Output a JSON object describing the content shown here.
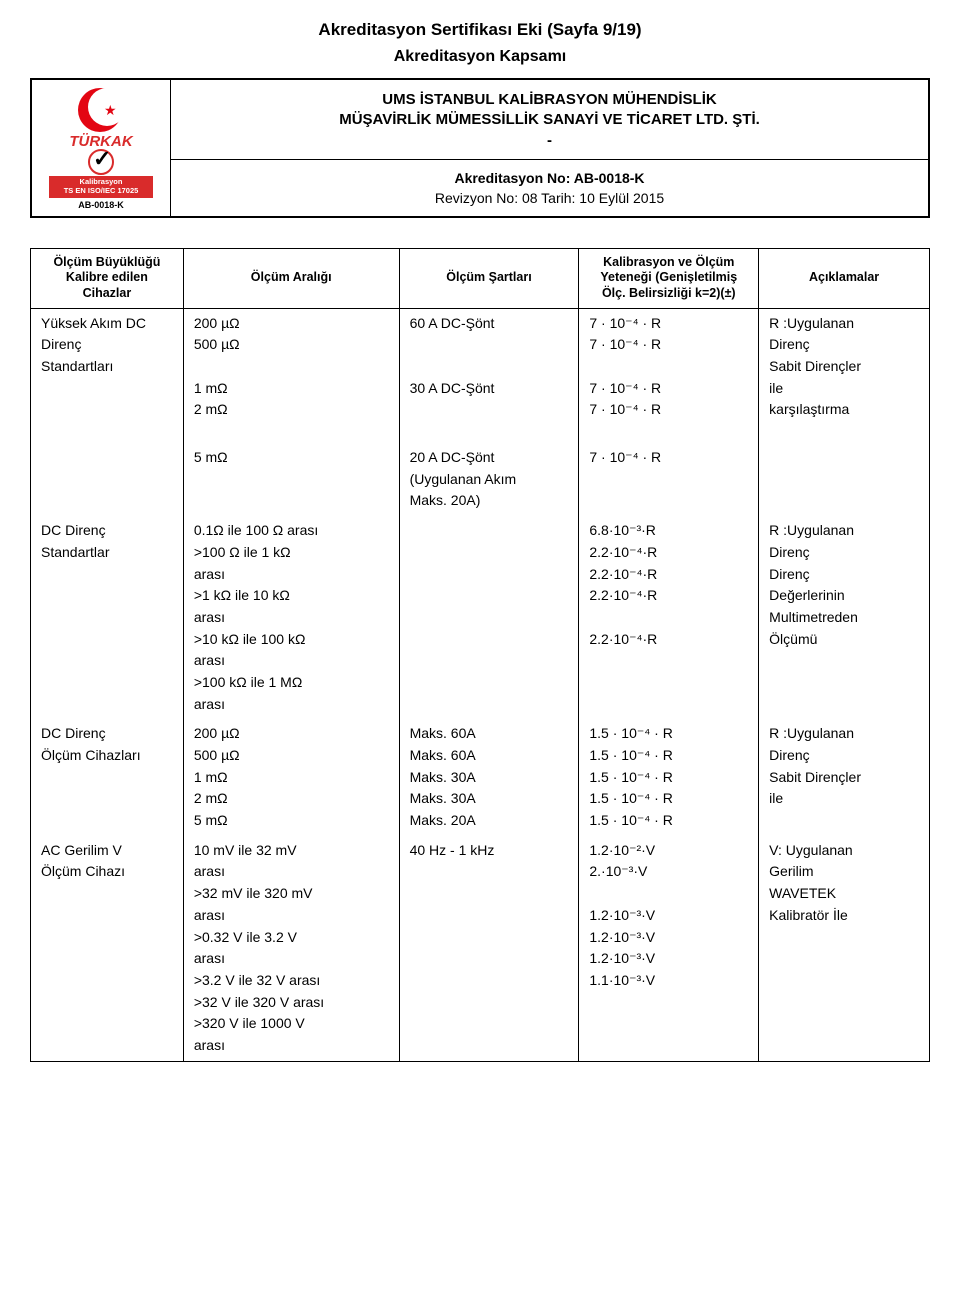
{
  "title": "Akreditasyon Sertifikası Eki (Sayfa 9/19)",
  "subtitle": "Akreditasyon Kapsamı",
  "logo": {
    "brand": "TÜRKAK",
    "line1": "Kalibrasyon",
    "line2": "TS EN ISO/IEC 17025",
    "code": "AB-0018-K"
  },
  "org": {
    "name_l1": "UMS İSTANBUL KALİBRASYON MÜHENDİSLİK",
    "name_l2": "MÜŞAVİRLİK MÜMESSİLLİK SANAYİ VE TİCARET LTD. ŞTİ.",
    "dash": "-",
    "accred_no": "Akreditasyon No: AB-0018-K",
    "rev": "Revizyon No: 08 Tarih: 10 Eylül 2015"
  },
  "colors": {
    "turkak_red": "#d92b2b",
    "flag_red": "#e30613",
    "black": "#000000",
    "white": "#ffffff"
  },
  "headers": {
    "c1a": "Ölçüm Büyüklüğü",
    "c1b": "Kalibre edilen",
    "c1c": "Cihazlar",
    "c2": "Ölçüm Aralığı",
    "c3": "Ölçüm Şartları",
    "c4a": "Kalibrasyon ve Ölçüm",
    "c4b": "Yeteneği (Genişletilmiş",
    "c4c": "Ölç. Belirsizliği k=2)(±)",
    "c5": "Açıklamalar"
  },
  "r1": {
    "c1a": "Yüksek Akım DC",
    "c1b": "Direnç",
    "c1c": "Standartları",
    "c2a": "200 µΩ",
    "c2b": "500 µΩ",
    "c2c": "1 mΩ",
    "c2d": "2 mΩ",
    "c3a": "60 A DC-Şönt",
    "c3c": "30 A DC-Şönt",
    "c4a": "7 · 10⁻⁴ · R",
    "c4b": "7 · 10⁻⁴ · R",
    "c4c": "7 · 10⁻⁴ · R",
    "c4d": "7 · 10⁻⁴ · R",
    "c5a": "R :Uygulanan",
    "c5b": "Direnç",
    "c5c": "Sabit Dirençler",
    "c5d": "ile",
    "c5e": "karşılaştırma"
  },
  "r2": {
    "c2a": "5 mΩ",
    "c3a": "20 A DC-Şönt",
    "c3b": "(Uygulanan Akım",
    "c3c": "Maks. 20A)",
    "c4a": "7 · 10⁻⁴ · R"
  },
  "r3": {
    "c1a": "DC Direnç",
    "c1b": "Standartlar",
    "c2a": "0.1Ω ile 100 Ω arası",
    "c2b": ">100 Ω ile 1 kΩ",
    "c2c": "arası",
    "c2d": ">1 kΩ ile 10 kΩ",
    "c2e": "arası",
    "c2f": ">10 kΩ ile 100 kΩ",
    "c2g": "arası",
    "c2h": ">100 kΩ ile 1 MΩ",
    "c2i": "arası",
    "c4a": "6.8·10⁻³·R",
    "c4b": "2.2·10⁻⁴·R",
    "c4c": "2.2·10⁻⁴·R",
    "c4d": "2.2·10⁻⁴·R",
    "c4e": "2.2·10⁻⁴·R",
    "c5a": "R :Uygulanan",
    "c5b": "Direnç",
    "c5c": "Direnç",
    "c5d": "Değerlerinin",
    "c5e": "Multimetreden",
    "c5f": "Ölçümü"
  },
  "r4": {
    "c1a": "DC Direnç",
    "c1b": "Ölçüm Cihazları",
    "c2a": "200 µΩ",
    "c2b": "500 µΩ",
    "c2c": "1 mΩ",
    "c2d": "2 mΩ",
    "c2e": "5 mΩ",
    "c3a": "Maks. 60A",
    "c3b": "Maks. 60A",
    "c3c": "Maks. 30A",
    "c3d": "Maks. 30A",
    "c3e": "Maks. 20A",
    "c4a": "1.5 · 10⁻⁴ · R",
    "c4b": "1.5 · 10⁻⁴ · R",
    "c4c": "1.5 · 10⁻⁴ · R",
    "c4d": "1.5 · 10⁻⁴ · R",
    "c4e": "1.5 · 10⁻⁴ · R",
    "c5a": "R :Uygulanan",
    "c5b": "Direnç",
    "c5c": "Sabit Dirençler",
    "c5d": "ile"
  },
  "r5": {
    "c1a": "AC Gerilim V",
    "c1b": "Ölçüm Cihazı",
    "c2a": "10 mV ile 32 mV",
    "c2b": "arası",
    "c2c": ">32 mV ile 320 mV",
    "c2d": "arası",
    "c2e": ">0.32 V ile 3.2 V",
    "c2f": "arası",
    "c2g": ">3.2 V ile 32 V arası",
    "c2h": ">32 V ile 320 V arası",
    "c2i": ">320 V ile 1000 V",
    "c2j": "arası",
    "c3a": "40 Hz - 1 kHz",
    "c4a": "1.2·10⁻²·V",
    "c4b": "2.·10⁻³·V",
    "c4c": "1.2·10⁻³·V",
    "c4d": "1.2·10⁻³·V",
    "c4e": "1.2·10⁻³·V",
    "c4f": "1.1·10⁻³·V",
    "c5a": "V: Uygulanan",
    "c5b": "Gerilim",
    "c5c": "WAVETEK",
    "c5d": "Kalibratör İle"
  }
}
